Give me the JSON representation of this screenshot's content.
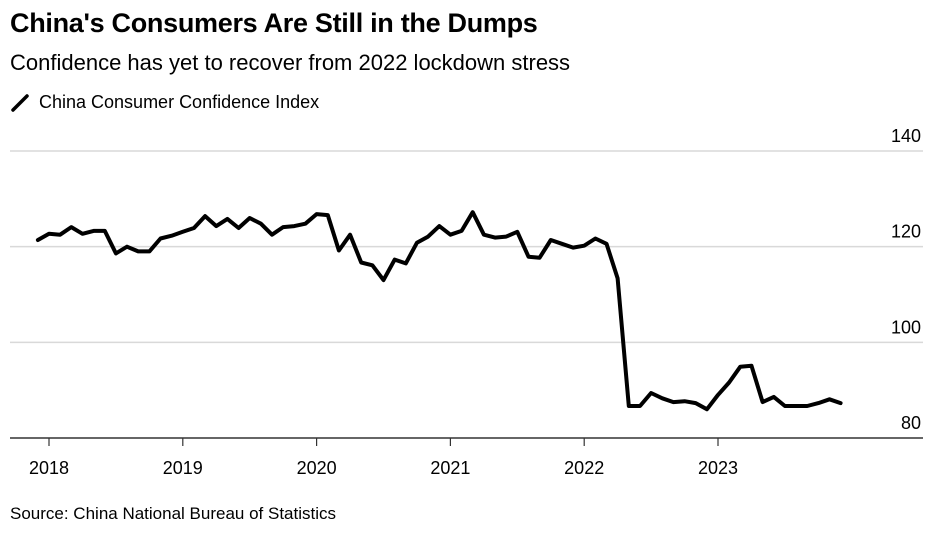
{
  "header": {
    "title": "China's Consumers Are Still in the Dumps",
    "subtitle": "Confidence has yet to recover from 2022 lockdown stress",
    "legend_label": "China Consumer Confidence Index",
    "legend_icon": "line-swatch-icon"
  },
  "footer": {
    "source": "Source: China National Bureau of Statistics"
  },
  "colors": {
    "line": "#000000",
    "gridline": "#d9d9d9",
    "axis": "#333333"
  },
  "chart_data": {
    "type": "line",
    "title": "China's Consumers Are Still in the Dumps",
    "subtitle": "Confidence has yet to recover from 2022 lockdown stress",
    "xlabel": "",
    "ylabel": "",
    "ylim": [
      80,
      140
    ],
    "yticks": [
      80,
      100,
      120,
      140
    ],
    "y_axis_side": "right",
    "xticks": [
      "2018",
      "2019",
      "2020",
      "2021",
      "2022",
      "2023"
    ],
    "grid": true,
    "legend": "top-left",
    "x_start": "2017-12",
    "x_end": "2023-12",
    "series": [
      {
        "name": "China Consumer Confidence Index",
        "x": [
          "2017-12",
          "2018-01",
          "2018-02",
          "2018-03",
          "2018-04",
          "2018-05",
          "2018-06",
          "2018-07",
          "2018-08",
          "2018-09",
          "2018-10",
          "2018-11",
          "2018-12",
          "2019-01",
          "2019-02",
          "2019-03",
          "2019-04",
          "2019-05",
          "2019-06",
          "2019-07",
          "2019-08",
          "2019-09",
          "2019-10",
          "2019-11",
          "2019-12",
          "2020-01",
          "2020-02",
          "2020-03",
          "2020-04",
          "2020-05",
          "2020-06",
          "2020-07",
          "2020-08",
          "2020-09",
          "2020-10",
          "2020-11",
          "2020-12",
          "2021-01",
          "2021-02",
          "2021-03",
          "2021-04",
          "2021-05",
          "2021-06",
          "2021-07",
          "2021-08",
          "2021-09",
          "2021-10",
          "2021-11",
          "2021-12",
          "2022-01",
          "2022-02",
          "2022-03",
          "2022-04",
          "2022-05",
          "2022-06",
          "2022-07",
          "2022-08",
          "2022-09",
          "2022-10",
          "2022-11",
          "2022-12",
          "2023-01",
          "2023-02",
          "2023-03",
          "2023-04",
          "2023-05",
          "2023-06",
          "2023-07",
          "2023-08",
          "2023-09",
          "2023-10",
          "2023-11",
          "2023-12"
        ],
        "values": [
          121.4,
          122.7,
          122.5,
          124.1,
          122.7,
          123.3,
          123.3,
          118.6,
          120.0,
          119.0,
          119.0,
          121.7,
          122.3,
          123.1,
          123.9,
          126.4,
          124.3,
          125.8,
          123.9,
          126.0,
          124.8,
          122.5,
          124.1,
          124.3,
          124.8,
          126.8,
          126.6,
          119.2,
          122.5,
          116.7,
          116.1,
          113.0,
          117.3,
          116.5,
          120.8,
          122.1,
          124.3,
          122.5,
          123.3,
          127.2,
          122.5,
          121.9,
          122.1,
          123.1,
          117.9,
          117.7,
          121.4,
          120.6,
          119.8,
          120.2,
          121.7,
          120.6,
          113.4,
          86.7,
          86.7,
          89.4,
          88.3,
          87.5,
          87.7,
          87.3,
          86.0,
          89.0,
          91.6,
          94.9,
          95.1,
          87.5,
          88.6,
          86.7,
          86.7,
          86.7,
          87.3,
          88.1,
          87.3
        ]
      }
    ]
  }
}
